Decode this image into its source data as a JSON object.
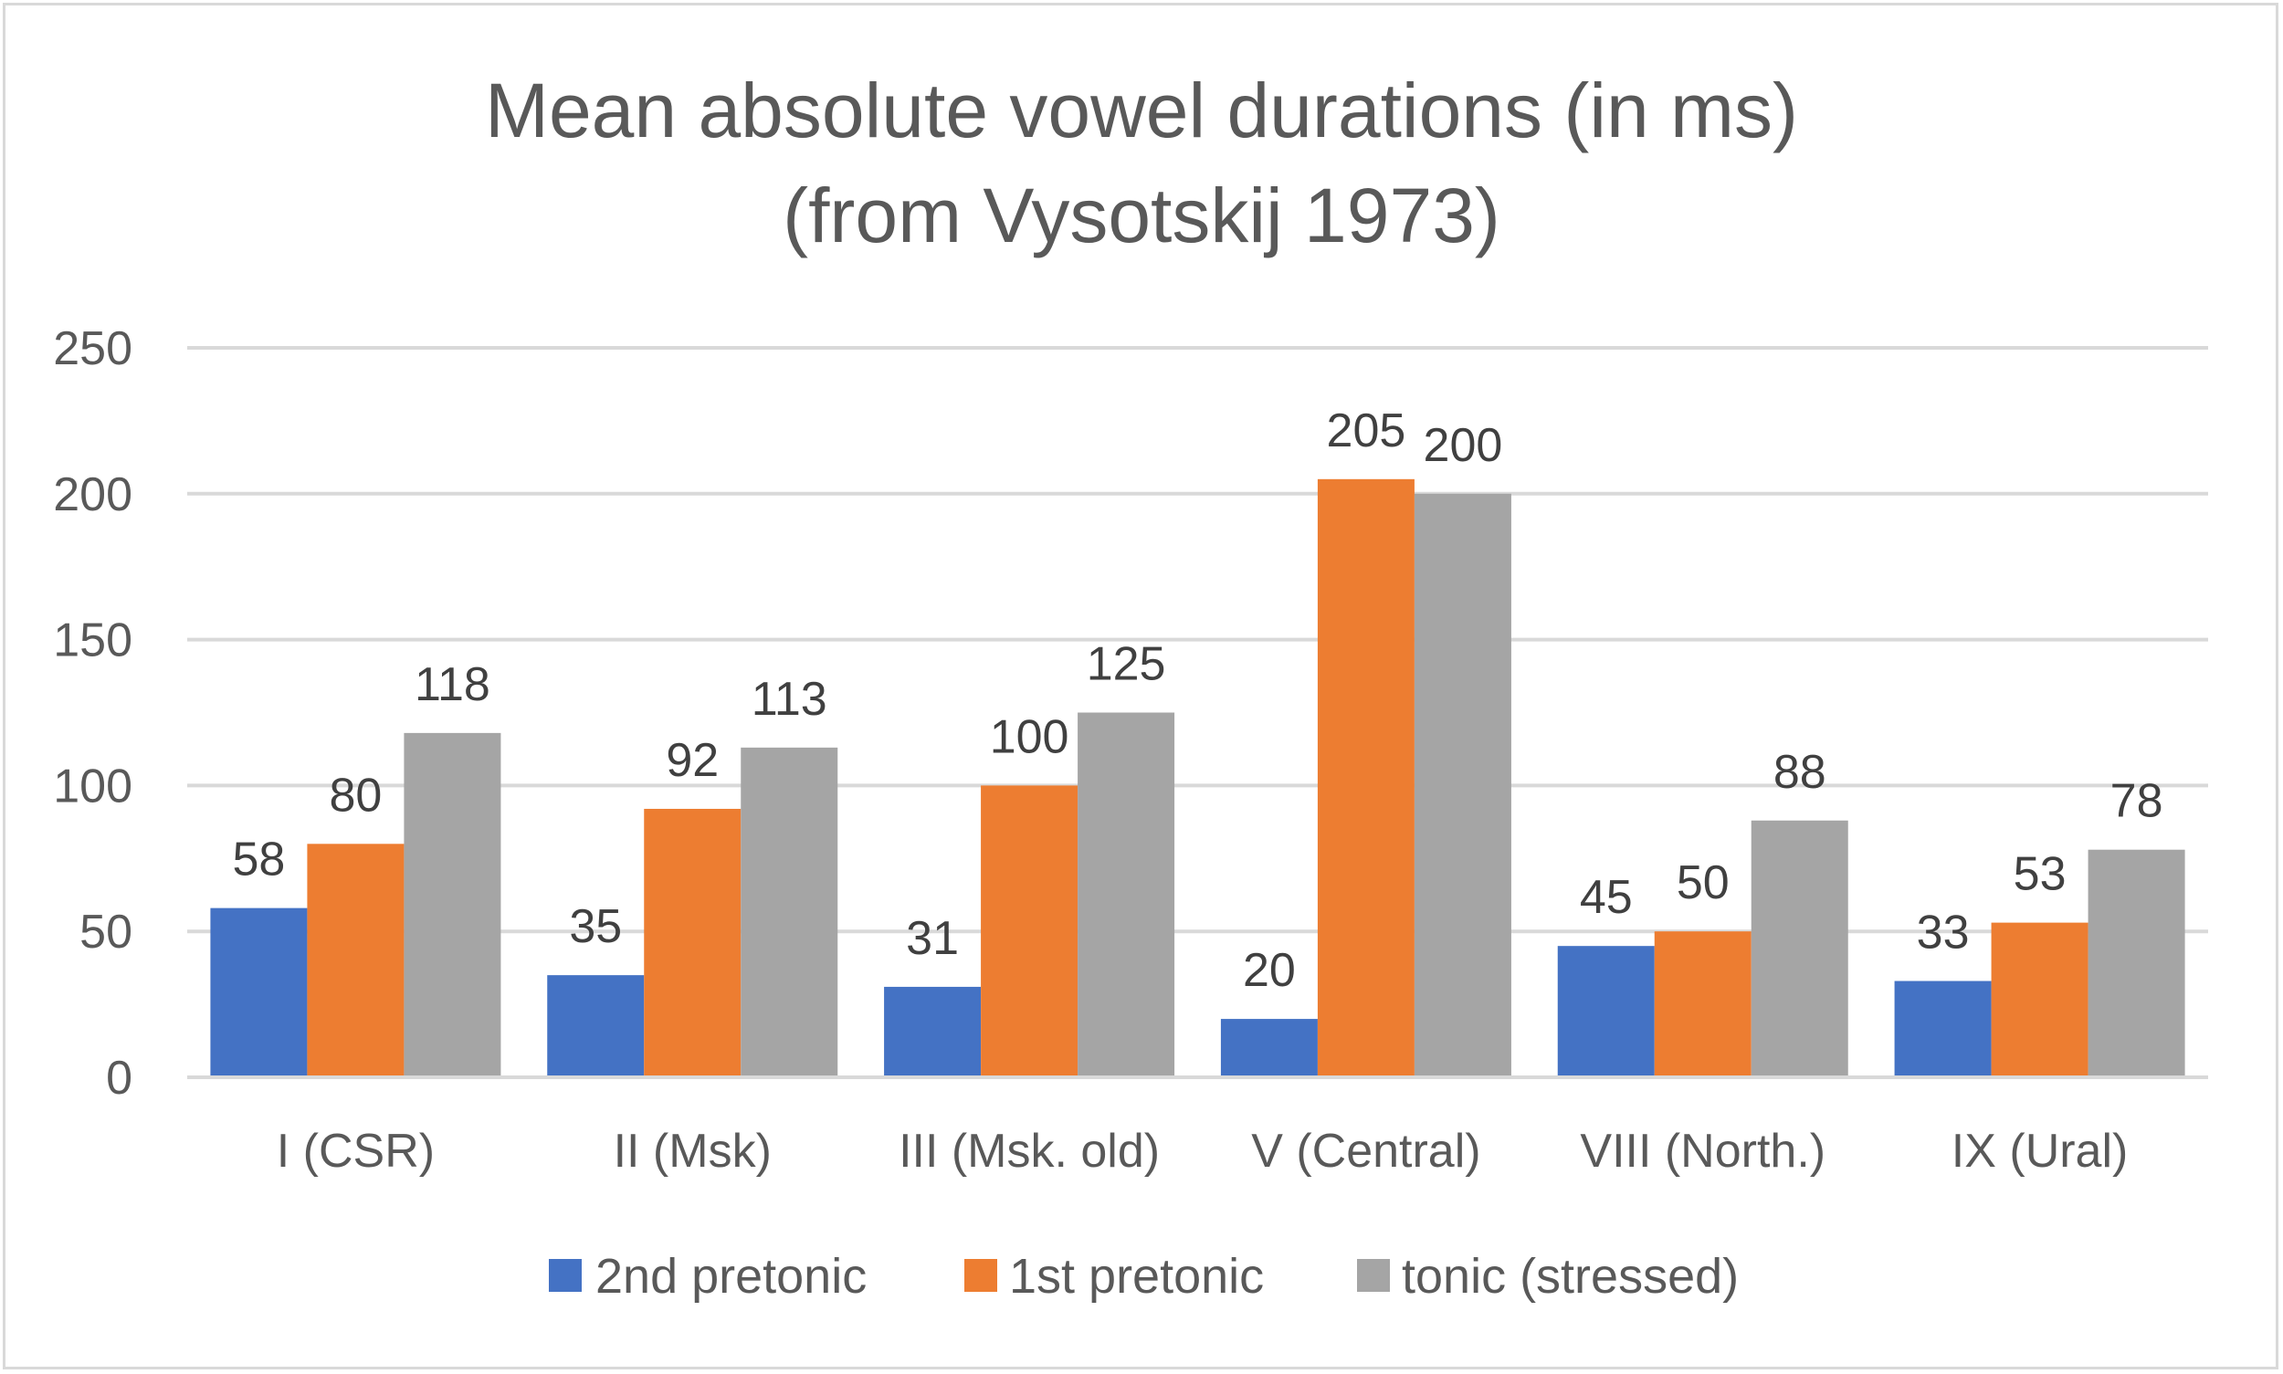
{
  "chart_data": {
    "type": "bar",
    "title_lines": [
      "Mean absolute vowel durations (in ms)",
      "(from Vysotskij 1973)"
    ],
    "xlabel": "",
    "ylabel": "",
    "ylim": [
      0,
      250
    ],
    "yticks": [
      0,
      50,
      100,
      150,
      200,
      250
    ],
    "grid": true,
    "legend_position": "bottom",
    "categories": [
      "I (CSR)",
      "II (Msk)",
      "III (Msk. old)",
      "V (Central)",
      "VIII (North.)",
      "IX (Ural)"
    ],
    "series": [
      {
        "name": "2nd pretonic",
        "color": "#4472c4",
        "values": [
          58,
          35,
          31,
          20,
          45,
          33
        ]
      },
      {
        "name": "1st pretonic",
        "color": "#ed7d31",
        "values": [
          80,
          92,
          100,
          205,
          50,
          53
        ]
      },
      {
        "name": "tonic (stressed)",
        "color": "#a5a5a5",
        "values": [
          118,
          113,
          125,
          200,
          88,
          78
        ]
      }
    ],
    "data_labels": true
  }
}
